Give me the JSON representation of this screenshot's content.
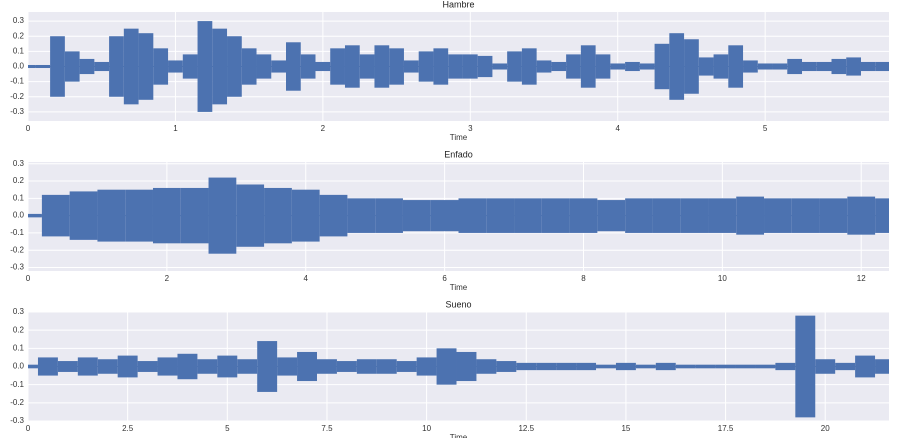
{
  "chart_data": [
    {
      "type": "area",
      "title": "Hambre",
      "xlabel": "Time",
      "color": "#4c72b0",
      "grid": true,
      "xlim": [
        0,
        5.84
      ],
      "ylim": [
        -0.36,
        0.36
      ],
      "xticks": [
        0,
        1,
        2,
        3,
        4,
        5
      ],
      "yticks": [
        -0.3,
        -0.2,
        -0.1,
        {
          "value": 0,
          "label": "0.0"
        },
        0.1,
        0.2,
        0.3
      ],
      "x": [
        0,
        0.1,
        0.2,
        0.3,
        0.4,
        0.5,
        0.6,
        0.7,
        0.8,
        0.9,
        1.0,
        1.1,
        1.2,
        1.3,
        1.4,
        1.5,
        1.6,
        1.7,
        1.8,
        1.9,
        2.0,
        2.1,
        2.2,
        2.3,
        2.4,
        2.5,
        2.6,
        2.7,
        2.8,
        2.9,
        3.0,
        3.1,
        3.2,
        3.3,
        3.4,
        3.5,
        3.6,
        3.7,
        3.8,
        3.9,
        4.0,
        4.1,
        4.2,
        4.3,
        4.4,
        4.5,
        4.6,
        4.7,
        4.8,
        4.9,
        5.0,
        5.1,
        5.2,
        5.3,
        5.4,
        5.5,
        5.6,
        5.7,
        5.8
      ],
      "values": [
        0.01,
        0.01,
        0.2,
        0.1,
        0.05,
        0.03,
        0.2,
        0.25,
        0.22,
        0.12,
        0.04,
        0.08,
        0.3,
        0.25,
        0.2,
        0.12,
        0.08,
        0.04,
        0.16,
        0.08,
        0.03,
        0.12,
        0.14,
        0.08,
        0.14,
        0.12,
        0.04,
        0.1,
        0.12,
        0.08,
        0.08,
        0.07,
        0.02,
        0.1,
        0.12,
        0.04,
        0.03,
        0.08,
        0.14,
        0.08,
        0.02,
        0.03,
        0.02,
        0.15,
        0.22,
        0.18,
        0.06,
        0.08,
        0.14,
        0.04,
        0.02,
        0.02,
        0.05,
        0.03,
        0.03,
        0.05,
        0.06,
        0.03,
        0.03
      ]
    },
    {
      "type": "area",
      "title": "Enfado",
      "xlabel": "Time",
      "color": "#4c72b0",
      "grid": true,
      "xlim": [
        0,
        12.4
      ],
      "ylim": [
        -0.32,
        0.31
      ],
      "xticks": [
        0,
        2,
        4,
        6,
        8,
        10,
        12
      ],
      "yticks": [
        -0.3,
        -0.2,
        -0.1,
        {
          "value": 0,
          "label": "0.0"
        },
        0.1,
        0.2,
        0.3
      ],
      "x": [
        0,
        0.4,
        0.8,
        1.2,
        1.6,
        2.0,
        2.4,
        2.8,
        3.2,
        3.6,
        4.0,
        4.4,
        4.8,
        5.2,
        5.6,
        6.0,
        6.4,
        6.8,
        7.2,
        7.6,
        8.0,
        8.4,
        8.8,
        9.2,
        9.6,
        10.0,
        10.4,
        10.8,
        11.2,
        11.6,
        12.0,
        12.4
      ],
      "values": [
        0.01,
        0.12,
        0.14,
        0.15,
        0.15,
        0.16,
        0.16,
        0.22,
        0.18,
        0.16,
        0.15,
        0.12,
        0.1,
        0.1,
        0.09,
        0.09,
        0.1,
        0.1,
        0.1,
        0.1,
        0.1,
        0.09,
        0.1,
        0.1,
        0.1,
        0.1,
        0.11,
        0.1,
        0.1,
        0.1,
        0.11,
        0.1
      ]
    },
    {
      "type": "area",
      "title": "Sueno",
      "xlabel": "Time",
      "color": "#4c72b0",
      "grid": true,
      "xlim": [
        0,
        21.6
      ],
      "ylim": [
        -0.3,
        0.3
      ],
      "xticks": [
        0,
        2.5,
        5,
        7.5,
        10,
        12.5,
        15,
        17.5,
        20
      ],
      "yticks": [
        -0.3,
        -0.2,
        -0.1,
        {
          "value": 0,
          "label": "0.0"
        },
        0.1,
        0.2,
        0.3
      ],
      "x": [
        0,
        0.5,
        1.0,
        1.5,
        2.0,
        2.5,
        3.0,
        3.5,
        4.0,
        4.5,
        5.0,
        5.5,
        6.0,
        6.5,
        7.0,
        7.5,
        8.0,
        8.5,
        9.0,
        9.5,
        10.0,
        10.5,
        11.0,
        11.5,
        12.0,
        12.5,
        13.0,
        13.5,
        14.0,
        14.5,
        15.0,
        15.5,
        16.0,
        16.5,
        17.0,
        17.5,
        18.0,
        18.5,
        19.0,
        19.5,
        20.0,
        20.5,
        21.0,
        21.5
      ],
      "values": [
        0.01,
        0.05,
        0.03,
        0.05,
        0.04,
        0.06,
        0.03,
        0.05,
        0.07,
        0.04,
        0.06,
        0.04,
        0.14,
        0.05,
        0.08,
        0.04,
        0.03,
        0.04,
        0.04,
        0.03,
        0.05,
        0.1,
        0.08,
        0.04,
        0.03,
        0.02,
        0.02,
        0.02,
        0.02,
        0.01,
        0.02,
        0.01,
        0.02,
        0.01,
        0.01,
        0.01,
        0.01,
        0.01,
        0.02,
        0.28,
        0.04,
        0.02,
        0.06,
        0.04
      ]
    }
  ]
}
